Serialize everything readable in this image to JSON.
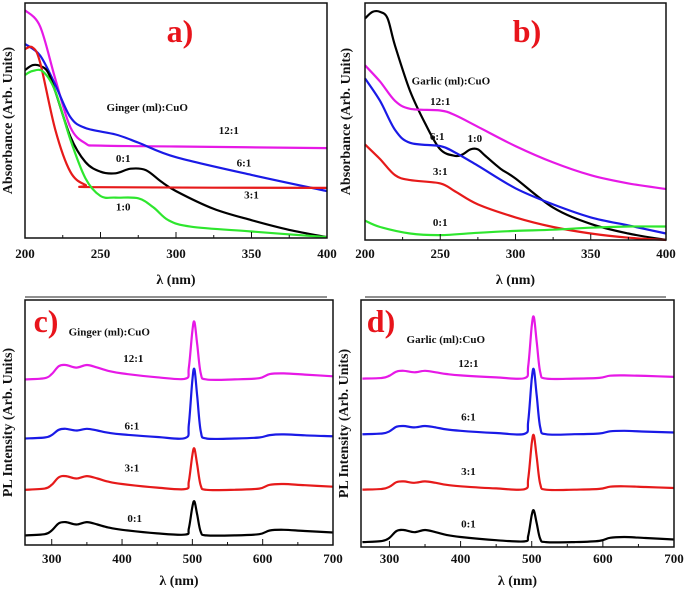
{
  "chart_data": [
    {
      "type": "line",
      "panel_label": "a)",
      "xlabel": "λ (nm)",
      "ylabel": "Absorbance (Arb. Units)",
      "xlim": [
        200,
        400
      ],
      "xticks": [
        200,
        250,
        300,
        350,
        400
      ],
      "ylim": [
        0,
        100
      ],
      "grid": false,
      "legend_title": "Ginger (ml):CuO",
      "series": [
        {
          "name": "12:1",
          "color": "#e619e6",
          "x": [
            200,
            210,
            220,
            230,
            240,
            250,
            300,
            400
          ],
          "y": [
            98.6,
            91.6,
            69,
            48,
            41,
            40,
            39.6,
            38.9
          ]
        },
        {
          "name": "6:1",
          "color": "#1a1ae6",
          "x": [
            200,
            210,
            220,
            230,
            240,
            260,
            275,
            300,
            350,
            400
          ],
          "y": [
            84,
            79,
            66.4,
            52.4,
            47.6,
            44.8,
            41.3,
            35,
            27.3,
            20.3
          ]
        },
        {
          "name": "0:1",
          "color": "#000000",
          "x": [
            200,
            205,
            210,
            215,
            220,
            230,
            240,
            250,
            260,
            270,
            280,
            290,
            300,
            325,
            350,
            375,
            400
          ],
          "y": [
            72.7,
            74.8,
            74.5,
            72,
            63.6,
            44,
            32.9,
            28.7,
            28,
            30,
            29.4,
            24.5,
            20.3,
            12.6,
            7.7,
            3.5,
            0.4
          ]
        },
        {
          "name": "3:1",
          "color": "#e61a1a",
          "x": [
            200,
            205,
            210,
            220,
            230,
            240,
            250,
            400
          ],
          "y": [
            81.8,
            82.5,
            76,
            47,
            28.7,
            23,
            22,
            21.7
          ]
        },
        {
          "name": "1:0",
          "color": "#2ee62e",
          "x": [
            200,
            205,
            212,
            220,
            230,
            240,
            250,
            260,
            275,
            285,
            295,
            310,
            350,
            400
          ],
          "y": [
            70.6,
            72.3,
            72,
            63.6,
            42.7,
            25.9,
            18.2,
            17.5,
            17.2,
            13.3,
            7.7,
            4.9,
            2.8,
            0.4
          ]
        }
      ],
      "labels": [
        {
          "text": "Ginger (ml):CuO",
          "x": 254,
          "y": 55,
          "anchor": "start"
        },
        {
          "text": "12:1",
          "x": 335,
          "y": 45
        },
        {
          "text": "6:1",
          "x": 345,
          "y": 31
        },
        {
          "text": "0:1",
          "x": 265,
          "y": 33
        },
        {
          "text": "3:1",
          "x": 350,
          "y": 17
        },
        {
          "text": "1:0",
          "x": 265,
          "y": 12
        }
      ]
    },
    {
      "type": "line",
      "panel_label": "b)",
      "xlabel": "λ (nm)",
      "ylabel": "Absorbance (Arb. Units)",
      "xlim": [
        200,
        400
      ],
      "xticks": [
        200,
        250,
        300,
        350,
        400
      ],
      "ylim": [
        0,
        100
      ],
      "grid": false,
      "legend_title": "Garlic (ml):CuO",
      "series": [
        {
          "name": "1:0",
          "color": "#000000",
          "x": [
            200,
            205,
            210,
            215,
            220,
            230,
            240,
            250,
            260,
            265,
            270,
            275,
            280,
            290,
            300,
            325,
            350,
            375,
            400
          ],
          "y": [
            95.1,
            97.9,
            97.9,
            95.1,
            83.3,
            63.9,
            50,
            38.9,
            36.1,
            36.8,
            38.9,
            38.9,
            36.1,
            30.6,
            26.4,
            13.9,
            6.9,
            2.8,
            0
          ]
        },
        {
          "name": "12:1",
          "color": "#e619e6",
          "x": [
            200,
            210,
            220,
            230,
            250,
            260,
            275,
            300,
            325,
            350,
            375,
            400
          ],
          "y": [
            75,
            68,
            59.7,
            56.3,
            55.6,
            53.5,
            48.6,
            40.3,
            33.3,
            27.8,
            24.3,
            21.9
          ]
        },
        {
          "name": "6:1",
          "color": "#1a1ae6",
          "x": [
            200,
            210,
            220,
            230,
            250,
            260,
            275,
            300,
            325,
            350,
            375,
            400
          ],
          "y": [
            69.4,
            59.7,
            47.2,
            41.7,
            40.3,
            37.5,
            31.9,
            22.2,
            15.3,
            9.7,
            6.25,
            2.8
          ]
        },
        {
          "name": "3:1",
          "color": "#e61a1a",
          "x": [
            200,
            210,
            220,
            230,
            250,
            260,
            275,
            300,
            325,
            350,
            375,
            400
          ],
          "y": [
            41,
            34.7,
            27.8,
            25.7,
            24.3,
            20.8,
            15.3,
            9.7,
            5.6,
            2.8,
            1,
            0
          ]
        },
        {
          "name": "0:1",
          "color": "#2ee62e",
          "x": [
            200,
            210,
            230,
            250,
            275,
            300,
            325,
            350,
            375,
            400
          ],
          "y": [
            8.3,
            5.6,
            2.8,
            2.1,
            3.1,
            3.9,
            4.4,
            5.3,
            5.8,
            5.8
          ]
        }
      ],
      "labels": [
        {
          "text": "Garlic (ml):CuO",
          "x": 231,
          "y": 66.7,
          "anchor": "start"
        },
        {
          "text": "12:1",
          "x": 250,
          "y": 58
        },
        {
          "text": "6:1",
          "x": 248,
          "y": 43
        },
        {
          "text": "1:0",
          "x": 273,
          "y": 42
        },
        {
          "text": "3:1",
          "x": 250,
          "y": 28
        },
        {
          "text": "0:1",
          "x": 250,
          "y": 6
        }
      ]
    },
    {
      "type": "line",
      "panel_label": "c)",
      "xlabel": "λ (nm)",
      "ylabel": "PL Intensity (Arb. Units)",
      "xlim": [
        262,
        700
      ],
      "xticks": [
        300,
        400,
        500,
        600,
        700
      ],
      "ylim": [
        0,
        100
      ],
      "grid": false,
      "legend_title": "Ginger (ml):CuO",
      "x": [
        262,
        290,
        300,
        310,
        320,
        335,
        350,
        365,
        380,
        400,
        450,
        490,
        495,
        500,
        503,
        507,
        512,
        520,
        560,
        595,
        610,
        630,
        660,
        700
      ],
      "series": [
        {
          "name": "0:1",
          "color": "#000000",
          "y": [
            4,
            4.5,
            6,
            9,
            9.5,
            8.5,
            9.5,
            8.5,
            7.3,
            6.3,
            4.8,
            4.3,
            6.8,
            15.9,
            18,
            12.4,
            5.4,
            4,
            4,
            4.5,
            6,
            6.3,
            5.8,
            5.2
          ]
        },
        {
          "name": "3:1",
          "color": "#e61a1a",
          "y": [
            22.9,
            23.4,
            25,
            28.1,
            28.6,
            27.6,
            28.6,
            27.6,
            26.3,
            25.3,
            23.8,
            23.2,
            26.3,
            37.4,
            39.9,
            33.1,
            24.6,
            22.9,
            22.9,
            23.4,
            25,
            25.3,
            24.8,
            24.2
          ]
        },
        {
          "name": "6:1",
          "color": "#1a1ae6",
          "y": [
            44.2,
            44.6,
            45.6,
            47.8,
            48.2,
            47.5,
            48.2,
            47.5,
            46.6,
            45.9,
            44.8,
            44.4,
            49.9,
            68.5,
            72.8,
            61.4,
            47.1,
            44.2,
            44.2,
            44.6,
            45.6,
            45.9,
            45.5,
            45.1
          ]
        },
        {
          "name": "12:1",
          "color": "#e619e6",
          "y": [
            68.7,
            69.2,
            70.9,
            74.2,
            74.7,
            73.6,
            74.7,
            73.6,
            72.3,
            71.2,
            69.6,
            69,
            73.5,
            88.9,
            92.5,
            83,
            71.1,
            68.7,
            68.7,
            69.2,
            70.9,
            71.2,
            70.7,
            70
          ]
        }
      ],
      "labels": [
        {
          "text": "Ginger (ml):CuO",
          "x": 324,
          "y": 87,
          "anchor": "start"
        },
        {
          "text": "12:1",
          "x": 416,
          "y": 76
        },
        {
          "text": "6:1",
          "x": 414,
          "y": 48
        },
        {
          "text": "3:1",
          "x": 414,
          "y": 30.6
        },
        {
          "text": "0:1",
          "x": 418,
          "y": 9.5
        }
      ]
    },
    {
      "type": "line",
      "panel_label": "d)",
      "xlabel": "λ (nm)",
      "ylabel": "PL Intensity (Arb. Units)",
      "xlim": [
        260,
        700
      ],
      "xticks": [
        300,
        400,
        500,
        600,
        700
      ],
      "ylim": [
        0,
        100
      ],
      "grid": false,
      "legend_title": "Garlic (ml):CuO",
      "x": [
        262,
        290,
        300,
        310,
        320,
        335,
        350,
        365,
        380,
        400,
        450,
        490,
        495,
        500,
        503,
        507,
        512,
        520,
        560,
        595,
        610,
        630,
        660,
        700
      ],
      "series": [
        {
          "name": "0:1",
          "color": "#000000",
          "y": [
            2,
            2.5,
            3.8,
            6.6,
            7,
            6.1,
            7,
            6.1,
            5,
            4.1,
            2.8,
            2.3,
            4.6,
            13.1,
            15,
            9.8,
            3.3,
            2,
            2,
            2.5,
            3.8,
            4.1,
            3.7,
            3.1
          ]
        },
        {
          "name": "3:1",
          "color": "#e61a1a",
          "y": [
            23.6,
            23.9,
            24.8,
            26.7,
            27,
            26.4,
            27,
            26.4,
            25.6,
            25,
            24.1,
            23.8,
            28.1,
            42.6,
            45.9,
            37,
            25.8,
            23.6,
            23.6,
            23.9,
            24.8,
            25,
            24.7,
            24.3
          ]
        },
        {
          "name": "6:1",
          "color": "#1a1ae6",
          "y": [
            46.4,
            46.7,
            47.6,
            49.5,
            49.8,
            49.2,
            49.8,
            49.2,
            48.4,
            47.8,
            46.9,
            46.6,
            51.7,
            69,
            73,
            62.4,
            49.1,
            46.4,
            46.4,
            46.7,
            47.6,
            47.8,
            47.5,
            47.1
          ]
        },
        {
          "name": "12:1",
          "color": "#e619e6",
          "y": [
            69.3,
            69.6,
            70.5,
            72.2,
            72.5,
            71.9,
            72.5,
            71.9,
            71.2,
            70.6,
            69.8,
            69.5,
            74.4,
            90.8,
            94.6,
            84.5,
            71.8,
            69.3,
            69.3,
            69.6,
            70.5,
            70.6,
            70.4,
            70
          ]
        }
      ],
      "labels": [
        {
          "text": "Garlic (ml):CuO",
          "x": 324,
          "y": 84,
          "anchor": "start"
        },
        {
          "text": "12:1",
          "x": 411,
          "y": 74
        },
        {
          "text": "6:1",
          "x": 411,
          "y": 52
        },
        {
          "text": "3:1",
          "x": 411,
          "y": 29.7
        },
        {
          "text": "0:1",
          "x": 411,
          "y": 8.1
        }
      ]
    }
  ]
}
